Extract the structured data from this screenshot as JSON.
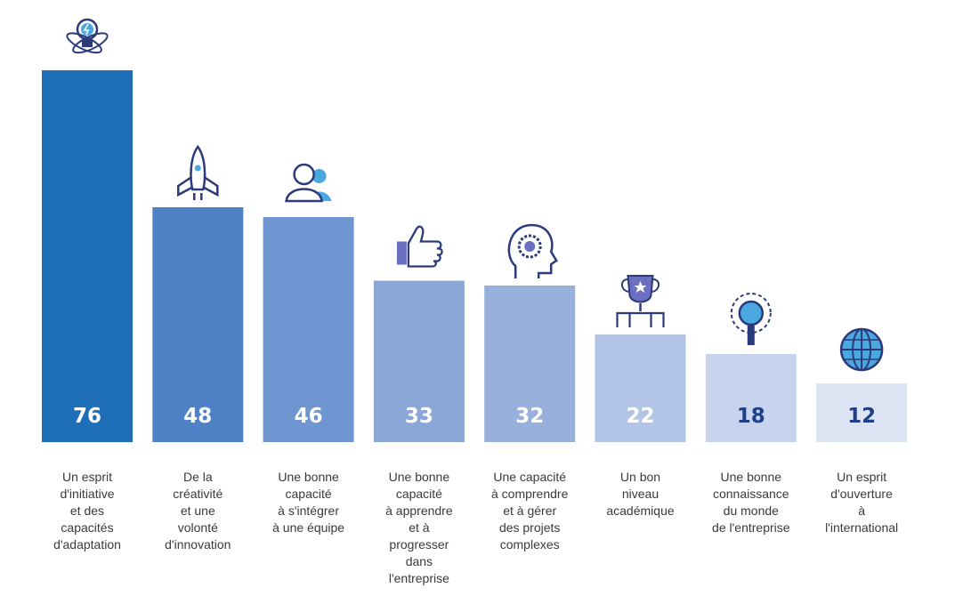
{
  "chart_data": {
    "type": "bar",
    "categories": [
      "Un esprit\nd'initiative\net des\ncapacités\nd'adaptation",
      "De la\ncréativité\net une\nvolonté\nd'innovation",
      "Une bonne\ncapacité\nà s'intégrer\nà une équipe",
      "Une bonne\ncapacité\nà apprendre\net à\nprogresser\ndans\nl'entreprise",
      "Une capacité\nà comprendre\net à gérer\ndes projets\ncomplexes",
      "Un bon\nniveau\nacadémique",
      "Une bonne\nconnaissance\ndu monde\nde l'entreprise",
      "Un esprit\nd'ouverture\nà\nl'international"
    ],
    "values": [
      76,
      48,
      46,
      33,
      32,
      22,
      18,
      12
    ],
    "value_labels": [
      "76",
      "48",
      "46",
      "33",
      "32",
      "22",
      "18",
      "12"
    ],
    "bar_colors": [
      "#1f6fb8",
      "#4f81c7",
      "#6f96d0",
      "#8aa7d8",
      "#97b1dc",
      "#b3c5e7",
      "#c8d4ee",
      "#dde5f5"
    ],
    "value_label_colors": [
      "#ffffff",
      "#ffffff",
      "#ffffff",
      "#ffffff",
      "#ffffff",
      "#ffffff",
      "#1f3f8a",
      "#1f3f8a"
    ],
    "icons": [
      "lightbulb-atom-icon",
      "rocket-icon",
      "people-icon",
      "thumbs-up-icon",
      "head-gear-icon",
      "trophy-icon",
      "gear-magnifier-icon",
      "globe-icon"
    ],
    "title": "",
    "xlabel": "",
    "ylabel": "",
    "ylim": [
      0,
      76
    ],
    "grid": false,
    "legend": "none"
  }
}
